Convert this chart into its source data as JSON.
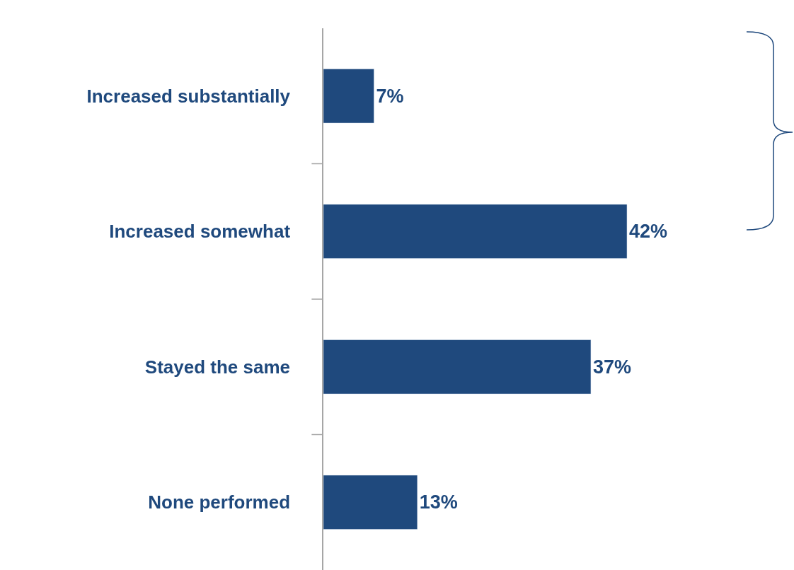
{
  "chart_data": {
    "type": "bar",
    "orientation": "horizontal",
    "categories": [
      "Increased substantially",
      "Increased somewhat",
      "Stayed the same",
      "None performed"
    ],
    "values": [
      7,
      42,
      37,
      13
    ],
    "value_labels": [
      "7%",
      "42%",
      "37%",
      "13%"
    ],
    "color": "#1f497d"
  }
}
